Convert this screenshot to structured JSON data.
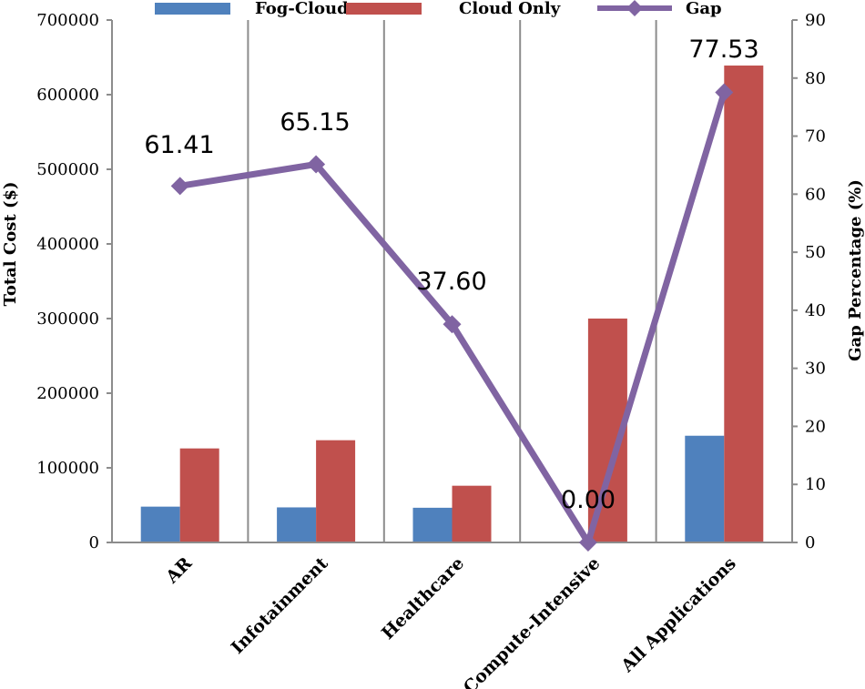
{
  "chart_data": {
    "type": "bar",
    "categories": [
      "AR",
      "Infotainment",
      "Healthcare",
      "Compute-Intensive",
      "All Applications"
    ],
    "series": [
      {
        "name": "Fog-Cloud",
        "type": "bar",
        "axis": "left",
        "color": "#4F81BD",
        "values": [
          48000,
          47000,
          46500,
          0,
          143000
        ]
      },
      {
        "name": "Cloud Only",
        "type": "bar",
        "axis": "left",
        "color": "#C0504D",
        "values": [
          126000,
          137000,
          76000,
          300000,
          639000
        ]
      },
      {
        "name": "Gap",
        "type": "line",
        "axis": "right",
        "color": "#8064A2",
        "values": [
          61.41,
          65.15,
          37.6,
          0.0,
          77.53
        ],
        "data_labels": [
          "61.41",
          "65.15",
          "37.60",
          "0.00",
          "77.53"
        ]
      }
    ],
    "ylabel": "Total Cost ($)",
    "y2label": "Gap Percentage (%)",
    "ylim": [
      0,
      700000
    ],
    "y2lim": [
      0,
      90
    ],
    "yticks": [
      "0",
      "100000",
      "200000",
      "300000",
      "400000",
      "500000",
      "600000",
      "700000"
    ],
    "y2ticks": [
      "0",
      "10",
      "20",
      "30",
      "40",
      "50",
      "60",
      "70",
      "80",
      "90"
    ],
    "grid": "vertical",
    "legend": "top"
  }
}
